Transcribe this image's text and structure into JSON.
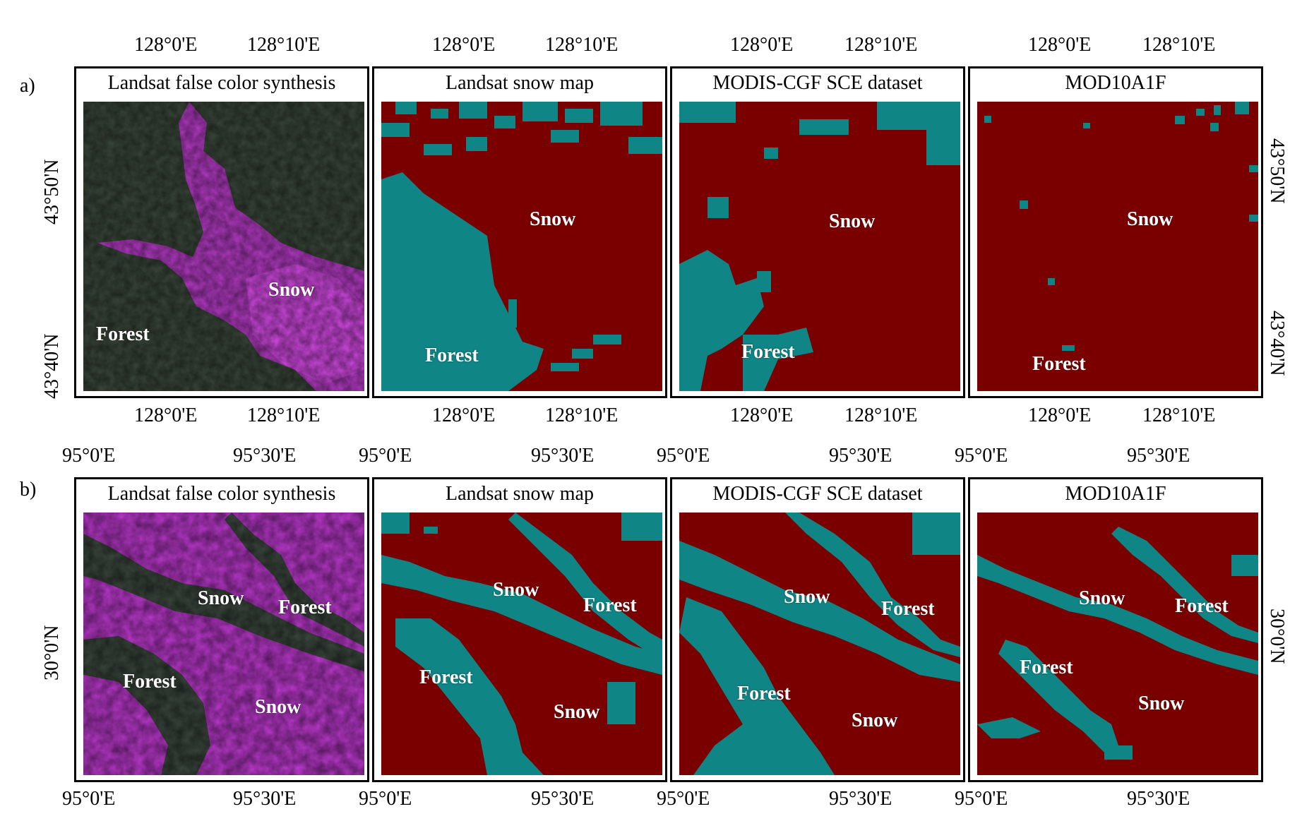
{
  "colors": {
    "snow_class": "#7a0000",
    "forest_class": "#0f8585",
    "landsat_snow": "#c838d8",
    "landsat_forest": "#2c3a2a"
  },
  "row_a": {
    "label": "a)",
    "top_ticks": [
      "128°0'E",
      "128°10'E"
    ],
    "bottom_ticks": [
      "128°0'E",
      "128°10'E"
    ],
    "left_ticks": [
      "43°50'N",
      "43°40'N"
    ],
    "right_ticks": [
      "43°50'N",
      "43°40'N"
    ],
    "panels": [
      {
        "title": "Landsat false color synthesis",
        "snow_label": "Snow",
        "forest_label": "Forest"
      },
      {
        "title": "Landsat snow map",
        "snow_label": "Snow",
        "forest_label": "Forest"
      },
      {
        "title": "MODIS-CGF SCE dataset",
        "snow_label": "Snow",
        "forest_label": "Forest"
      },
      {
        "title": "MOD10A1F",
        "snow_label": "Snow",
        "forest_label": "Forest"
      }
    ]
  },
  "row_b": {
    "label": "b)",
    "top_ticks": [
      "95°0'E",
      "95°30'E"
    ],
    "bottom_ticks": [
      "95°0'E",
      "95°30'E"
    ],
    "left_ticks": [
      "30°0'N"
    ],
    "right_ticks": [
      "30°0'N"
    ],
    "panels": [
      {
        "title": "Landsat false color synthesis",
        "snow_label": "Snow",
        "forest_label": "Forest",
        "snow_label_2": "Snow",
        "forest_label_2": "Forest"
      },
      {
        "title": "Landsat snow map",
        "snow_label": "Snow",
        "forest_label": "Forest",
        "snow_label_2": "Snow",
        "forest_label_2": "Forest"
      },
      {
        "title": "MODIS-CGF SCE dataset",
        "snow_label": "Snow",
        "forest_label": "Forest",
        "snow_label_2": "Snow",
        "forest_label_2": "Forest"
      },
      {
        "title": "MOD10A1F",
        "snow_label": "Snow",
        "forest_label": "Forest",
        "snow_label_2": "Snow",
        "forest_label_2": "Forest"
      }
    ]
  }
}
